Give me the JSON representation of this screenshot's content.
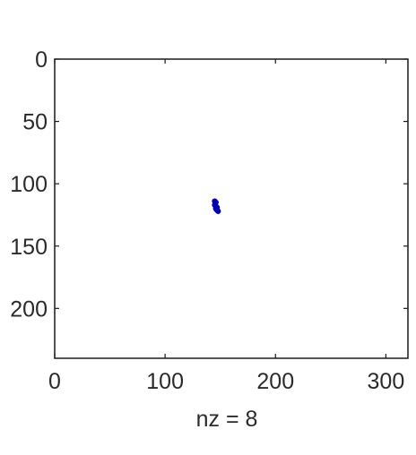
{
  "chart_data": {
    "type": "scatter",
    "title": "",
    "xlabel": "nz = 8",
    "ylabel": "",
    "xlim": [
      0,
      320
    ],
    "ylim": [
      0,
      240
    ],
    "y_axis_reversed": true,
    "x_ticks": [
      "0",
      "100",
      "200",
      "300"
    ],
    "y_ticks": [
      "0",
      "50",
      "100",
      "150",
      "200"
    ],
    "grid": false,
    "legend": "none",
    "marker_color": "#0000b0",
    "points": [
      {
        "x": 145,
        "y": 114
      },
      {
        "x": 146,
        "y": 115
      },
      {
        "x": 145,
        "y": 117
      },
      {
        "x": 146,
        "y": 118
      },
      {
        "x": 147,
        "y": 119
      },
      {
        "x": 146,
        "y": 120
      },
      {
        "x": 147,
        "y": 121
      },
      {
        "x": 148,
        "y": 122
      }
    ]
  }
}
